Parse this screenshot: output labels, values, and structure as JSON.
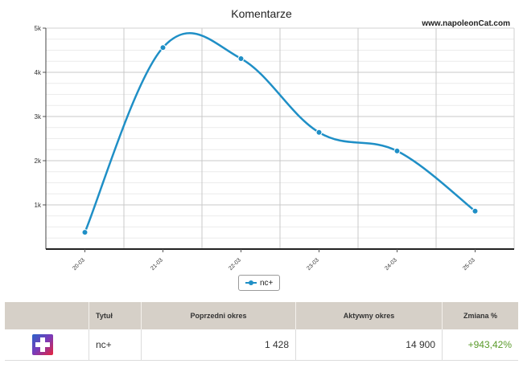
{
  "chart_data": {
    "type": "line",
    "title": "Komentarze",
    "brand": "www.napoleonCat.com",
    "categories": [
      "20-03",
      "21-03",
      "22-03",
      "23-03",
      "24-03",
      "25-03"
    ],
    "series": [
      {
        "name": "nc+",
        "values": [
          380,
          4560,
          4310,
          2640,
          2220,
          860
        ],
        "color": "#1f8fc6"
      }
    ],
    "ylim": [
      0,
      5000
    ],
    "yticks": [
      1000,
      2000,
      3000,
      4000,
      5000
    ],
    "ytick_labels": [
      "1k",
      "2k",
      "3k",
      "4k",
      "5k"
    ],
    "grid": true,
    "legend": "bottom-center"
  },
  "legend": {
    "label": "nc+"
  },
  "table": {
    "headers": [
      "",
      "Tytuł",
      "Poprzedni okres",
      "Aktywny okres",
      "Zmiana %"
    ],
    "rows": [
      {
        "title": "nc+",
        "previous": "1 428",
        "active": "14 900",
        "change": "+943,42%"
      }
    ],
    "change_color": "#5a9a2a"
  }
}
